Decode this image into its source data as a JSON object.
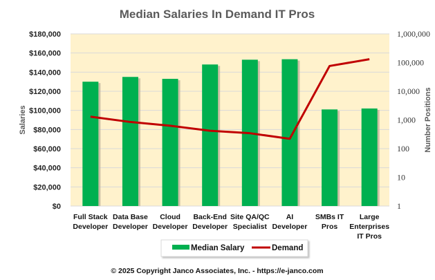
{
  "chart_data": {
    "type": "bar+line",
    "title": "Median Salaries In Demand IT Pros",
    "categories": [
      [
        "Full Stack",
        "Developer"
      ],
      [
        "Data Base",
        "Developer"
      ],
      [
        "Cloud",
        "Developer"
      ],
      [
        "Back-End",
        "Developer"
      ],
      [
        "Site QA/QC",
        "Specialist"
      ],
      [
        "AI",
        "Developer"
      ],
      [
        "SMBs IT",
        "Pros"
      ],
      [
        "Large",
        "Enterprises",
        "IT Pros"
      ]
    ],
    "series": [
      {
        "name": "Median Salary",
        "type": "bar",
        "axis": "left",
        "color": "#00b050",
        "values": [
          130000,
          135000,
          133000,
          148000,
          153000,
          153500,
          101000,
          102000
        ]
      },
      {
        "name": "Demand",
        "type": "line",
        "axis": "right",
        "color": "#c00000",
        "values": [
          1300,
          850,
          630,
          420,
          345,
          220,
          76000,
          131000
        ]
      }
    ],
    "left_axis": {
      "label": "Salaries",
      "range": [
        0,
        180000
      ],
      "ticks": [
        0,
        20000,
        40000,
        60000,
        80000,
        100000,
        120000,
        140000,
        160000,
        180000
      ],
      "tick_labels": [
        "$0",
        "$20,000",
        "$40,000",
        "$60,000",
        "$80,000",
        "$100,000",
        "$120,000",
        "$140,000",
        "$160,000",
        "$180,000"
      ]
    },
    "right_axis": {
      "label": "Number Positions",
      "scale": "log",
      "range": [
        1,
        1000000
      ],
      "ticks": [
        1,
        10,
        100,
        1000,
        10000,
        100000,
        1000000
      ],
      "tick_labels": [
        "1",
        "10",
        "100",
        "1,000",
        "10,000",
        "100,000",
        "1,000,000"
      ]
    },
    "grid": true,
    "legend": {
      "placement": "bottom",
      "entries": [
        "Median Salary",
        "Demand"
      ]
    },
    "plot_background": "#fff2cc",
    "footer": "© 2025 Copyright Janco Associates, Inc. - https://e-janco.com"
  }
}
